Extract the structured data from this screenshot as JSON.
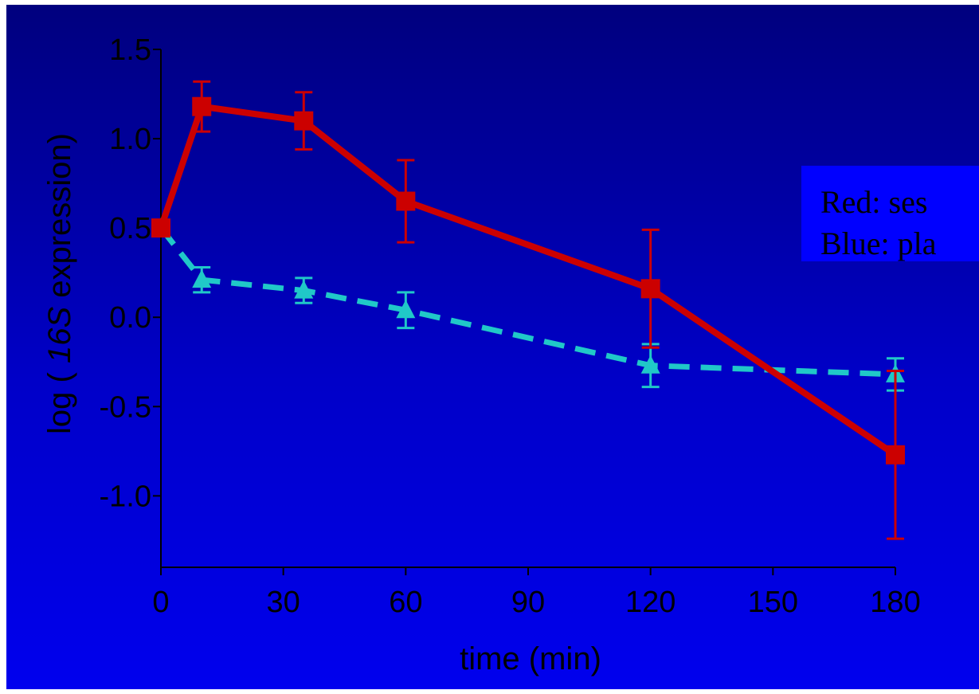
{
  "chart_data": {
    "type": "line",
    "xlabel": "time (min)",
    "ylabel_parts": [
      "log ( ",
      "16S",
      " expression)"
    ],
    "xlim": [
      0,
      180
    ],
    "ylim": [
      -1.4,
      1.5
    ],
    "xticks": [
      0,
      30,
      60,
      90,
      120,
      150,
      180
    ],
    "xtick_labels": [
      "0",
      "30",
      "60",
      "90",
      "120",
      "150",
      "180"
    ],
    "yticks": [
      1.5,
      1.0,
      0.5,
      0.0,
      -0.5,
      -1.0
    ],
    "ytick_labels": [
      "1.5",
      "1.0",
      "0.5",
      "0.0",
      "-0.5",
      "-1.0"
    ],
    "grid": false,
    "series": [
      {
        "color": "#cc0000",
        "line_style": "solid",
        "marker": "square",
        "x": [
          0,
          10,
          35,
          60,
          120,
          180
        ],
        "y": [
          0.5,
          1.18,
          1.1,
          0.65,
          0.16,
          -0.77
        ],
        "err": [
          0.0,
          0.14,
          0.16,
          0.23,
          0.33,
          0.47
        ]
      },
      {
        "color": "#20c8c8",
        "line_style": "dashed",
        "marker": "triangle",
        "x": [
          0,
          10,
          35,
          60,
          120,
          180
        ],
        "y": [
          0.5,
          0.21,
          0.15,
          0.04,
          -0.27,
          -0.32
        ],
        "err": [
          0.0,
          0.07,
          0.07,
          0.1,
          0.12,
          0.09
        ]
      }
    ],
    "legend_lines": [
      "Red: ses",
      "Blue: pla"
    ]
  }
}
